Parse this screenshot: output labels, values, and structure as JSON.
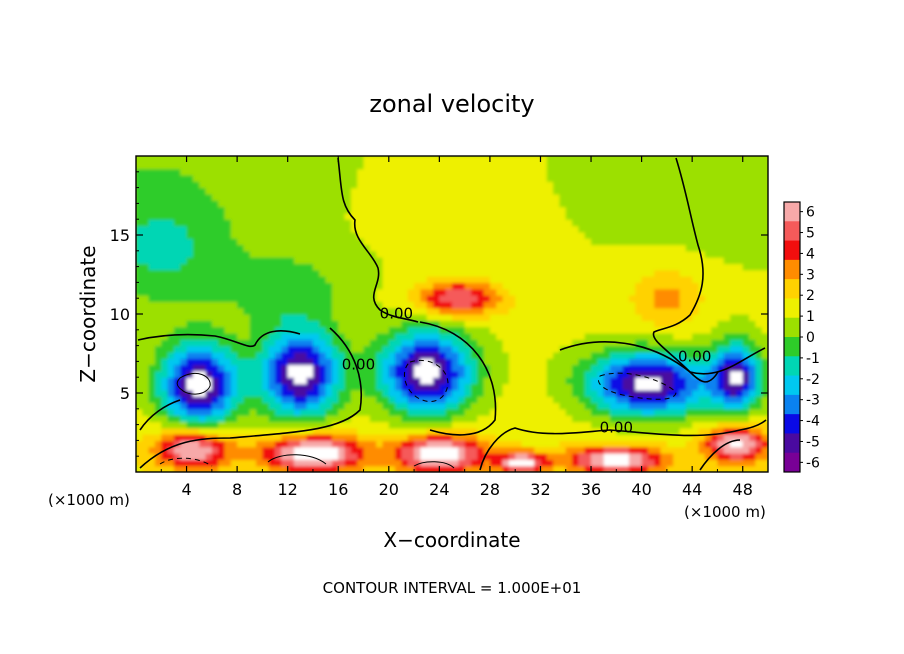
{
  "chart_data": {
    "type": "heatmap",
    "title": "zonal velocity",
    "xlabel": "X−coordinate",
    "ylabel": "Z−coordinate",
    "x_unit_left": "(×1000 m)",
    "x_unit_right": "(×1000 m)",
    "footer": "CONTOUR INTERVAL = 1.000E+01",
    "xlim": [
      0,
      50
    ],
    "ylim": [
      0,
      20
    ],
    "x_ticks": [
      4,
      8,
      12,
      16,
      20,
      24,
      28,
      32,
      36,
      40,
      44,
      48
    ],
    "y_ticks": [
      5,
      10,
      15
    ],
    "colorbar": {
      "levels": [
        6,
        5,
        4,
        3,
        2,
        1,
        0,
        -1,
        -2,
        -3,
        -4,
        -5,
        -6
      ],
      "colors": [
        "#f7a9a9",
        "#f55a5a",
        "#f20e0e",
        "#ff8c00",
        "#ffd200",
        "#eef000",
        "#9ce000",
        "#2ecc29",
        "#00d6b4",
        "#00c8f0",
        "#0a82f0",
        "#0a0ae6",
        "#4a0aa0",
        "#780096"
      ]
    },
    "contour_labels": [
      {
        "text": "0.00",
        "x": 20.6,
        "z": 9.7
      },
      {
        "text": "0.00",
        "x": 17.6,
        "z": 6.5
      },
      {
        "text": "0.00",
        "x": 44.2,
        "z": 7.0
      },
      {
        "text": "0.00",
        "x": 38.0,
        "z": 2.5
      }
    ],
    "features": [
      {
        "x": 5,
        "z": 5.5,
        "rx": 3.2,
        "rz": 2.7,
        "v": -8
      },
      {
        "x": 13,
        "z": 6.2,
        "rx": 3.2,
        "rz": 2.8,
        "v": -8
      },
      {
        "x": 23,
        "z": 6.3,
        "rx": 3.8,
        "rz": 2.7,
        "v": -8
      },
      {
        "x": 40.5,
        "z": 5.6,
        "rx": 5.0,
        "rz": 2.1,
        "v": -8
      },
      {
        "x": 47.5,
        "z": 6.0,
        "rx": 2.0,
        "rz": 2.2,
        "v": -7
      },
      {
        "x": 25.5,
        "z": 11.0,
        "rx": 3.5,
        "rz": 1.2,
        "v": 5
      },
      {
        "x": 4.5,
        "z": 1.5,
        "rx": 3.0,
        "rz": 1.3,
        "v": 6
      },
      {
        "x": 14.0,
        "z": 1.2,
        "rx": 4.0,
        "rz": 1.2,
        "v": 7
      },
      {
        "x": 24.0,
        "z": 1.2,
        "rx": 3.5,
        "rz": 1.2,
        "v": 7
      },
      {
        "x": 30.5,
        "z": 0.6,
        "rx": 2.0,
        "rz": 0.7,
        "v": 6
      },
      {
        "x": 38.0,
        "z": 0.8,
        "rx": 4.0,
        "rz": 0.9,
        "v": 6
      },
      {
        "x": 47.5,
        "z": 1.8,
        "rx": 2.5,
        "rz": 1.2,
        "v": 6
      },
      {
        "x": 2.0,
        "z": 14.0,
        "rx": 6.0,
        "rz": 4.0,
        "v": -2.2
      },
      {
        "x": 12.0,
        "z": 11.5,
        "rx": 5.0,
        "rz": 2.5,
        "v": -1.8
      },
      {
        "x": 42.0,
        "z": 11.0,
        "rx": 3.0,
        "rz": 2.0,
        "v": 2.2
      }
    ]
  }
}
